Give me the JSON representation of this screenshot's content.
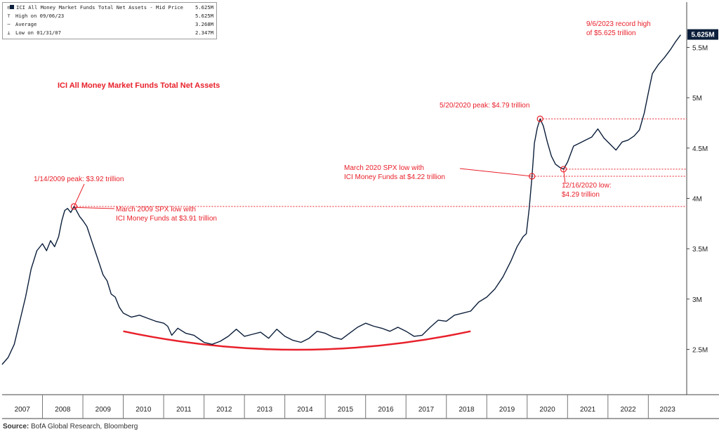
{
  "legend": {
    "title": "ICI All Money Market Funds Total Net Assets - Mid Price",
    "title_value": "5.625M",
    "rows": [
      {
        "label": "High on 09/06/23",
        "value": "5.625M",
        "icon": "high-marker-icon"
      },
      {
        "label": "Average",
        "value": "3.268M",
        "icon": "average-marker-icon"
      },
      {
        "label": "Low on 01/31/07",
        "value": "2.347M",
        "icon": "low-marker-icon"
      }
    ]
  },
  "chart_title": "ICI All Money Market Funds Total Net Assets",
  "annotations": {
    "peak_2009": "1/14/2009 peak: $3.92 trillion",
    "spx_low_2009_line1": "March 2009 SPX low with",
    "spx_low_2009_line2": "ICI Money Funds at $3.91 trillion",
    "peak_2020": "5/20/2020 peak: $4.79 trillion",
    "spx_low_2020_line1": "March 2020 SPX low with",
    "spx_low_2020_line2": "ICI Money Funds at $4.22 trillion",
    "low_2020_line1": "12/16/2020 low:",
    "low_2020_line2": "$4.29 trillion",
    "record_line1": "9/6/2023 record high",
    "record_line2": "of $5.625 trillion"
  },
  "source_label": "Source:",
  "source_text": "BofA Global Research, Bloomberg",
  "colors": {
    "line": "#0b1e3a",
    "accent": "#e8202a",
    "grid": "#888888",
    "last_badge": "#0b1e3a"
  },
  "chart_data": {
    "type": "line",
    "title": "ICI All Money Market Funds Total Net Assets",
    "x_ticks": [
      "2007",
      "2008",
      "2009",
      "2010",
      "2011",
      "2012",
      "2013",
      "2014",
      "2015",
      "2016",
      "2017",
      "2018",
      "2019",
      "2020",
      "2021",
      "2022",
      "2023"
    ],
    "y_ticks": [
      "2.5M",
      "3M",
      "3.5M",
      "4M",
      "4.5M",
      "5M",
      "5.5M"
    ],
    "y_tick_values": [
      2.5,
      3.0,
      3.5,
      4.0,
      4.5,
      5.0,
      5.5
    ],
    "ylim": [
      2.05,
      5.95
    ],
    "xlim": [
      2007.0,
      2023.95
    ],
    "last_value_label": "5.625M",
    "series": [
      {
        "values": [
          [
            2007.0,
            2.35
          ],
          [
            2007.15,
            2.42
          ],
          [
            2007.3,
            2.55
          ],
          [
            2007.45,
            2.8
          ],
          [
            2007.58,
            3.02
          ],
          [
            2007.72,
            3.3
          ],
          [
            2007.86,
            3.48
          ],
          [
            2008.0,
            3.55
          ],
          [
            2008.1,
            3.48
          ],
          [
            2008.2,
            3.58
          ],
          [
            2008.3,
            3.52
          ],
          [
            2008.4,
            3.62
          ],
          [
            2008.48,
            3.78
          ],
          [
            2008.55,
            3.88
          ],
          [
            2008.62,
            3.9
          ],
          [
            2008.7,
            3.86
          ],
          [
            2008.78,
            3.92
          ],
          [
            2008.84,
            3.88
          ],
          [
            2008.92,
            3.82
          ],
          [
            2009.0,
            3.78
          ],
          [
            2009.1,
            3.72
          ],
          [
            2009.2,
            3.6
          ],
          [
            2009.3,
            3.48
          ],
          [
            2009.4,
            3.36
          ],
          [
            2009.5,
            3.24
          ],
          [
            2009.6,
            3.18
          ],
          [
            2009.7,
            3.05
          ],
          [
            2009.8,
            3.02
          ],
          [
            2009.9,
            2.92
          ],
          [
            2010.0,
            2.86
          ],
          [
            2010.2,
            2.82
          ],
          [
            2010.4,
            2.84
          ],
          [
            2010.6,
            2.81
          ],
          [
            2010.8,
            2.78
          ],
          [
            2011.0,
            2.76
          ],
          [
            2011.1,
            2.73
          ],
          [
            2011.2,
            2.64
          ],
          [
            2011.35,
            2.71
          ],
          [
            2011.55,
            2.66
          ],
          [
            2011.75,
            2.64
          ],
          [
            2012.0,
            2.57
          ],
          [
            2012.2,
            2.55
          ],
          [
            2012.4,
            2.58
          ],
          [
            2012.6,
            2.63
          ],
          [
            2012.8,
            2.7
          ],
          [
            2013.0,
            2.63
          ],
          [
            2013.2,
            2.65
          ],
          [
            2013.4,
            2.67
          ],
          [
            2013.6,
            2.61
          ],
          [
            2013.8,
            2.7
          ],
          [
            2014.0,
            2.63
          ],
          [
            2014.2,
            2.59
          ],
          [
            2014.4,
            2.57
          ],
          [
            2014.6,
            2.61
          ],
          [
            2014.8,
            2.68
          ],
          [
            2015.0,
            2.66
          ],
          [
            2015.2,
            2.62
          ],
          [
            2015.4,
            2.6
          ],
          [
            2015.6,
            2.66
          ],
          [
            2015.8,
            2.72
          ],
          [
            2016.0,
            2.76
          ],
          [
            2016.2,
            2.73
          ],
          [
            2016.4,
            2.71
          ],
          [
            2016.6,
            2.68
          ],
          [
            2016.8,
            2.72
          ],
          [
            2017.0,
            2.68
          ],
          [
            2017.2,
            2.63
          ],
          [
            2017.4,
            2.64
          ],
          [
            2017.6,
            2.72
          ],
          [
            2017.8,
            2.79
          ],
          [
            2018.0,
            2.78
          ],
          [
            2018.2,
            2.84
          ],
          [
            2018.4,
            2.86
          ],
          [
            2018.6,
            2.88
          ],
          [
            2018.8,
            2.97
          ],
          [
            2019.0,
            3.02
          ],
          [
            2019.2,
            3.1
          ],
          [
            2019.4,
            3.22
          ],
          [
            2019.6,
            3.38
          ],
          [
            2019.75,
            3.52
          ],
          [
            2019.9,
            3.62
          ],
          [
            2019.98,
            3.65
          ],
          [
            2020.05,
            3.9
          ],
          [
            2020.12,
            4.22
          ],
          [
            2020.18,
            4.55
          ],
          [
            2020.25,
            4.7
          ],
          [
            2020.32,
            4.79
          ],
          [
            2020.4,
            4.72
          ],
          [
            2020.5,
            4.56
          ],
          [
            2020.6,
            4.42
          ],
          [
            2020.7,
            4.34
          ],
          [
            2020.8,
            4.31
          ],
          [
            2020.9,
            4.29
          ],
          [
            2021.0,
            4.36
          ],
          [
            2021.15,
            4.52
          ],
          [
            2021.3,
            4.55
          ],
          [
            2021.45,
            4.58
          ],
          [
            2021.6,
            4.61
          ],
          [
            2021.75,
            4.69
          ],
          [
            2021.9,
            4.6
          ],
          [
            2022.05,
            4.54
          ],
          [
            2022.2,
            4.48
          ],
          [
            2022.35,
            4.56
          ],
          [
            2022.5,
            4.58
          ],
          [
            2022.65,
            4.62
          ],
          [
            2022.78,
            4.68
          ],
          [
            2022.9,
            4.85
          ],
          [
            2023.0,
            5.05
          ],
          [
            2023.1,
            5.24
          ],
          [
            2023.25,
            5.33
          ],
          [
            2023.4,
            5.4
          ],
          [
            2023.55,
            5.48
          ],
          [
            2023.68,
            5.56
          ],
          [
            2023.8,
            5.625
          ]
        ]
      }
    ],
    "trend_arc": {
      "values": [
        [
          2010.0,
          2.68
        ],
        [
          2014.3,
          2.48
        ],
        [
          2018.6,
          2.68
        ]
      ]
    },
    "reference_lines": [
      3.92,
      4.79,
      4.29,
      4.22
    ],
    "marked_points": [
      [
        2008.78,
        3.92
      ],
      [
        2020.32,
        4.79
      ],
      [
        2020.12,
        4.22
      ],
      [
        2020.9,
        4.29
      ]
    ]
  }
}
